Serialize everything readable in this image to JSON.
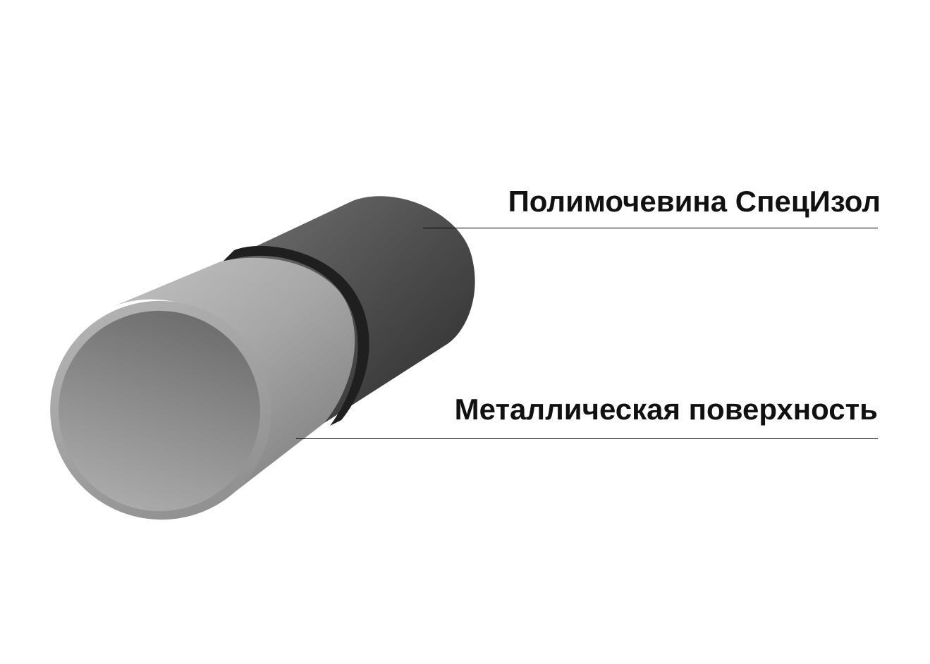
{
  "labels": {
    "coating": "Полимочевина СпецИзол",
    "metal": "Металлическая поверхность"
  },
  "colors": {
    "background": "#ffffff",
    "text": "#111111",
    "leader_line": "#000000",
    "coating_light": "#6e6e6e",
    "coating_dark": "#2f2f2f",
    "metal_light": "#b9b9b9",
    "metal_dark": "#8a8a8a"
  }
}
